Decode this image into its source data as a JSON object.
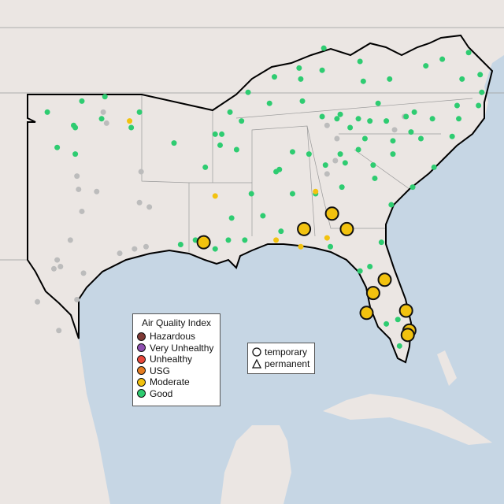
{
  "legend": {
    "title": "Air Quality Index",
    "categories": [
      {
        "label": "Hazardous",
        "color": "#7e3a36"
      },
      {
        "label": "Very Unhealthy",
        "color": "#8e4fb0"
      },
      {
        "label": "Unhealthy",
        "color": "#e8483b"
      },
      {
        "label": "USG",
        "color": "#e57d21"
      },
      {
        "label": "Moderate",
        "color": "#f2c20f"
      },
      {
        "label": "Good",
        "color": "#2ecc71"
      }
    ],
    "monitor_types": [
      {
        "label": "temporary",
        "shape": "circle"
      },
      {
        "label": "permanent",
        "shape": "triangle"
      }
    ]
  },
  "colors": {
    "land": "#ebe6e3",
    "water": "#c6d6e4",
    "no_data": "#bcbcbc",
    "region_outline": "#000000"
  },
  "monitors": {
    "temporary_moderate": [
      [
        -92.3,
        30.3
      ],
      [
        -86.2,
        30.9
      ],
      [
        -84.5,
        31.6
      ],
      [
        -83.6,
        30.9
      ],
      [
        -81.3,
        28.6
      ],
      [
        -82.0,
        28.0
      ],
      [
        -82.4,
        27.1
      ],
      [
        -80.0,
        27.2
      ],
      [
        -79.8,
        26.3
      ],
      [
        -79.9,
        26.1
      ]
    ],
    "permanent_moderate": [
      [
        -96.8,
        35.8
      ],
      [
        -91.6,
        32.4
      ],
      [
        -85.5,
        32.6
      ],
      [
        -87.9,
        30.4
      ],
      [
        -84.8,
        30.5
      ],
      [
        -86.4,
        30.1
      ]
    ],
    "permanent_good": [
      [
        -101.8,
        36.2
      ],
      [
        -99.7,
        36.7
      ],
      [
        -98.3,
        36.9
      ],
      [
        -96.2,
        36.2
      ],
      [
        -100.2,
        35.6
      ],
      [
        -100.1,
        35.5
      ],
      [
        -98.5,
        35.9
      ],
      [
        -96.7,
        35.5
      ],
      [
        -101.2,
        34.6
      ],
      [
        -100.1,
        34.3
      ],
      [
        -94.1,
        34.8
      ],
      [
        -91.6,
        35.2
      ],
      [
        -91.2,
        35.2
      ],
      [
        -90.7,
        36.2
      ],
      [
        -90.0,
        35.8
      ],
      [
        -89.6,
        37.1
      ],
      [
        -88.0,
        37.8
      ],
      [
        -86.5,
        38.2
      ],
      [
        -86.4,
        37.7
      ],
      [
        -85.1,
        38.1
      ],
      [
        -85.0,
        39.1
      ],
      [
        -82.8,
        38.5
      ],
      [
        -82.6,
        37.6
      ],
      [
        -81.0,
        37.7
      ],
      [
        -78.8,
        38.3
      ],
      [
        -77.8,
        38.6
      ],
      [
        -76.2,
        38.9
      ],
      [
        -76.6,
        37.7
      ],
      [
        -75.4,
        37.1
      ],
      [
        -75.5,
        37.9
      ],
      [
        -88.3,
        36.6
      ],
      [
        -86.3,
        36.7
      ],
      [
        -85.1,
        36.0
      ],
      [
        -84.2,
        35.9
      ],
      [
        -83.4,
        35.5
      ],
      [
        -82.2,
        35.8
      ],
      [
        -81.2,
        35.8
      ],
      [
        -80.0,
        36.0
      ],
      [
        -79.5,
        36.2
      ],
      [
        -78.4,
        35.9
      ],
      [
        -76.8,
        35.9
      ],
      [
        -75.6,
        36.5
      ],
      [
        -76.9,
        36.5
      ],
      [
        -91.3,
        34.7
      ],
      [
        -92.2,
        33.7
      ],
      [
        -90.3,
        34.5
      ],
      [
        -89.4,
        32.5
      ],
      [
        -87.7,
        33.6
      ],
      [
        -87.9,
        33.5
      ],
      [
        -86.9,
        34.4
      ],
      [
        -85.9,
        34.3
      ],
      [
        -84.9,
        33.8
      ],
      [
        -84.0,
        34.3
      ],
      [
        -83.7,
        33.9
      ],
      [
        -82.9,
        34.5
      ],
      [
        -82.0,
        33.8
      ],
      [
        -80.8,
        34.3
      ],
      [
        -79.6,
        32.8
      ],
      [
        -78.3,
        33.7
      ],
      [
        -77.2,
        35.1
      ],
      [
        -80.9,
        32.0
      ],
      [
        -81.9,
        33.2
      ],
      [
        -83.9,
        32.8
      ],
      [
        -85.5,
        32.5
      ],
      [
        -86.9,
        32.5
      ],
      [
        -90.6,
        31.4
      ],
      [
        -88.7,
        31.5
      ],
      [
        -93.7,
        30.2
      ],
      [
        -92.8,
        30.4
      ],
      [
        -91.6,
        30.0
      ],
      [
        -90.8,
        30.4
      ],
      [
        -89.8,
        30.4
      ],
      [
        -87.6,
        30.8
      ],
      [
        -84.6,
        30.1
      ],
      [
        -82.8,
        29.0
      ],
      [
        -81.5,
        30.3
      ],
      [
        -82.2,
        29.2
      ],
      [
        -80.5,
        26.8
      ],
      [
        -81.2,
        26.6
      ],
      [
        -80.4,
        25.6
      ],
      [
        -79.7,
        35.3
      ],
      [
        -82.5,
        35.0
      ],
      [
        -80.8,
        34.9
      ],
      [
        -84.0,
        36.1
      ],
      [
        -82.9,
        35.9
      ],
      [
        -81.7,
        36.6
      ],
      [
        -79.1,
        35.0
      ]
    ],
    "permanent_no_data": [
      [
        -99.9,
        32.7
      ],
      [
        -98.8,
        32.6
      ],
      [
        -100.0,
        33.3
      ],
      [
        -99.7,
        31.7
      ],
      [
        -100.4,
        30.4
      ],
      [
        -101.2,
        29.5
      ],
      [
        -101.0,
        29.2
      ],
      [
        -101.4,
        29.1
      ],
      [
        -96.1,
        33.5
      ],
      [
        -96.2,
        32.1
      ],
      [
        -97.4,
        29.8
      ],
      [
        -95.8,
        30.1
      ],
      [
        -96.5,
        30.0
      ],
      [
        -102.4,
        27.6
      ],
      [
        -101.1,
        26.3
      ],
      [
        -100.0,
        27.7
      ],
      [
        -99.6,
        28.9
      ],
      [
        -95.6,
        31.9
      ],
      [
        -84.8,
        33.4
      ],
      [
        -84.3,
        34.0
      ],
      [
        -80.1,
        36.0
      ],
      [
        -80.7,
        35.4
      ],
      [
        -84.2,
        35.0
      ],
      [
        -84.8,
        35.6
      ],
      [
        -98.4,
        36.2
      ],
      [
        -98.2,
        35.7
      ]
    ]
  }
}
